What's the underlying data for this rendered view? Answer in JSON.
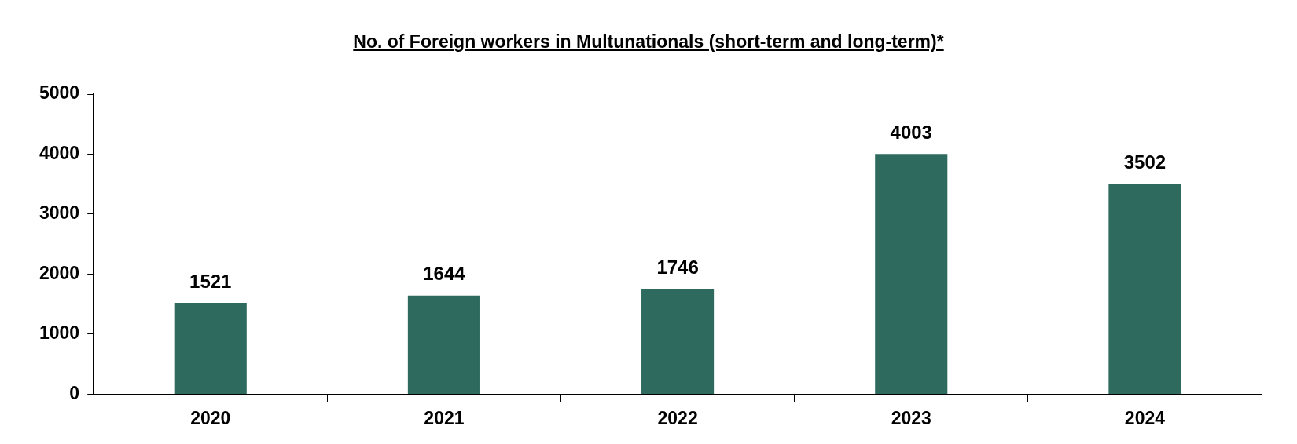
{
  "chart_data": {
    "type": "bar",
    "title": "No. of Foreign workers in Multunationals (short-term and long-term)*",
    "categories": [
      "2020",
      "2021",
      "2022",
      "2023",
      "2024"
    ],
    "values": [
      1521,
      1644,
      1746,
      4003,
      3502
    ],
    "color": "#2e6b5e",
    "ylim": [
      0,
      5000
    ],
    "yticks": [
      0,
      1000,
      2000,
      3000,
      4000,
      5000
    ],
    "data_labels": true
  }
}
